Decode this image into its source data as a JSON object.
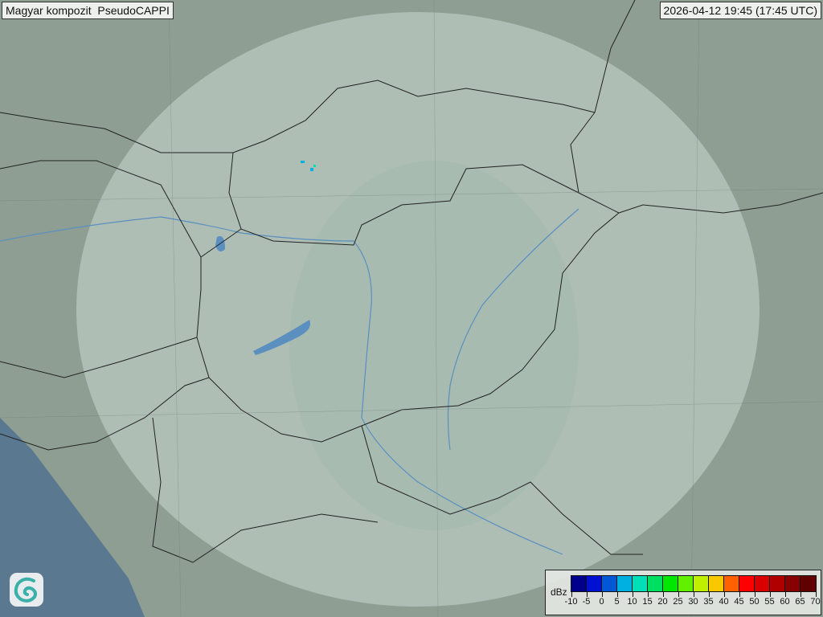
{
  "header": {
    "title": "Magyar kompozit  PseudoCAPPI",
    "timestamp": "2026-04-12 19:45 (17:45 UTC)"
  },
  "logo": {
    "icon": "swirl-logo-icon"
  },
  "legend": {
    "unit": "dBz",
    "ticks": [
      "-10",
      "-5",
      "0",
      "5",
      "10",
      "15",
      "20",
      "25",
      "30",
      "35",
      "40",
      "45",
      "50",
      "55",
      "60",
      "65",
      "70"
    ],
    "colors": [
      "#00008c",
      "#0010d0",
      "#0058d8",
      "#00b0e0",
      "#00e0b8",
      "#00e060",
      "#00e800",
      "#60f000",
      "#c0f000",
      "#f8c800",
      "#ff6000",
      "#ff0000",
      "#d80000",
      "#b00000",
      "#880000",
      "#600000"
    ]
  },
  "map": {
    "land_color": "#8e9e93",
    "coverage_color": "#c8d8d0",
    "sea_color": "#5a7890",
    "border_color": "#222222",
    "river_color": "#5a8fc0"
  }
}
